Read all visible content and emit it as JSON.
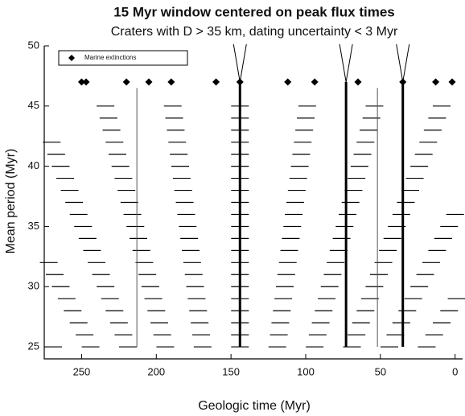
{
  "chart_data": {
    "type": "period-window",
    "title": "15 Myr window centered on peak flux times",
    "subtitle": "Craters with D > 35 km, dating uncertainty < 3 Myr",
    "xlabel": "Geologic time (Myr)",
    "ylabel": "Mean period (Myr)",
    "xlim": [
      275,
      -5
    ],
    "xticks": [
      250,
      200,
      150,
      100,
      50,
      0
    ],
    "ylim": [
      24,
      50
    ],
    "yticks": [
      25,
      30,
      35,
      40,
      45,
      50
    ],
    "periods": [
      25,
      26,
      27,
      28,
      29,
      30,
      31,
      32,
      33,
      34,
      35,
      36,
      37,
      38,
      39,
      40,
      41,
      42,
      43,
      44,
      45
    ],
    "peak_lines": [
      144,
      73,
      35
    ],
    "thin_lines": [
      213,
      52
    ],
    "extinctions": {
      "name": "Marine extinctions",
      "color": "#000000",
      "x": [
        250,
        247,
        220,
        205,
        190,
        160,
        144,
        112,
        94,
        65,
        35,
        13,
        2
      ],
      "y": [
        47,
        47,
        47,
        47,
        47,
        47,
        47,
        47,
        47,
        47,
        47,
        47,
        47
      ]
    },
    "legend": "upper left"
  }
}
